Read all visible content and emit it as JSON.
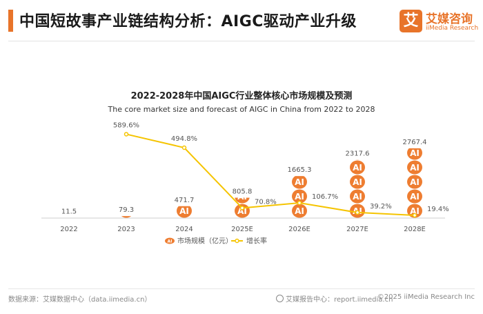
{
  "header": {
    "title": "中国短故事产业链结构分析：AIGC驱动产业升级",
    "logo_mark": "艾",
    "logo_cn": "艾媒咨询",
    "logo_en": "iiMedia Research"
  },
  "colors": {
    "accent": "#e8742a",
    "line": "#f5c400",
    "icon": "#ee7d31"
  },
  "chart_data": {
    "type": "bar",
    "title": "2022-2028年中国AIGC行业整体核心市场规模及预测",
    "subtitle": "The core market size and forecast of AIGC in China from 2022 to 2028",
    "categories": [
      "2022",
      "2023",
      "2024",
      "2025E",
      "2026E",
      "2027E",
      "2028E"
    ],
    "series": [
      {
        "name": "市场规模（亿元）",
        "kind": "bar",
        "icon_text": "AI",
        "values": [
          11.5,
          79.3,
          471.7,
          805.8,
          1665.3,
          2317.6,
          2767.4
        ],
        "labels": [
          "11.5",
          "79.3",
          "471.7",
          "805.8",
          "1665.3",
          "2317.6",
          "2767.4"
        ]
      },
      {
        "name": "增长率",
        "kind": "line",
        "values": [
          null,
          589.6,
          494.8,
          70.8,
          106.7,
          39.2,
          19.4
        ],
        "labels": [
          "",
          "589.6%",
          "494.8%",
          "70.8%",
          "106.7%",
          "39.2%",
          "19.4%"
        ]
      }
    ],
    "ylim_bar": [
      0,
      2900
    ],
    "ylim_line": [
      0,
      650
    ],
    "legend_position": "bottom-center",
    "grid": false
  },
  "footer": {
    "source": "数据来源：艾媒数据中心（data.iimedia.cn）",
    "report": "艾媒报告中心：report.iimedia.cn",
    "copyright": "©2025  iiMedia Research  Inc"
  }
}
